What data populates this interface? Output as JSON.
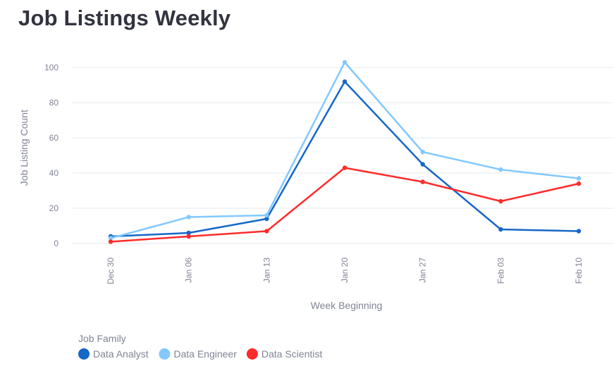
{
  "chart_data": {
    "type": "line",
    "title": "Job Listings Weekly",
    "xlabel": "Week Beginning",
    "ylabel": "Job Listing Count",
    "categories": [
      "Dec 30",
      "Jan 06",
      "Jan 13",
      "Jan 20",
      "Jan 27",
      "Feb 03",
      "Feb 10"
    ],
    "yticks": [
      0,
      20,
      40,
      60,
      80,
      100
    ],
    "ylim": [
      0,
      104
    ],
    "grid": true,
    "legend": {
      "title": "Job Family",
      "position": "bottom-left"
    },
    "series": [
      {
        "name": "Data Analyst",
        "color": "#1767c7",
        "values": [
          4,
          6,
          14,
          92,
          45,
          8,
          7
        ]
      },
      {
        "name": "Data Engineer",
        "color": "#83c9ff",
        "values": [
          3,
          15,
          16,
          103,
          52,
          42,
          37
        ]
      },
      {
        "name": "Data Scientist",
        "color": "#ff2b2b",
        "values": [
          1,
          4,
          7,
          43,
          35,
          24,
          34
        ]
      }
    ]
  }
}
